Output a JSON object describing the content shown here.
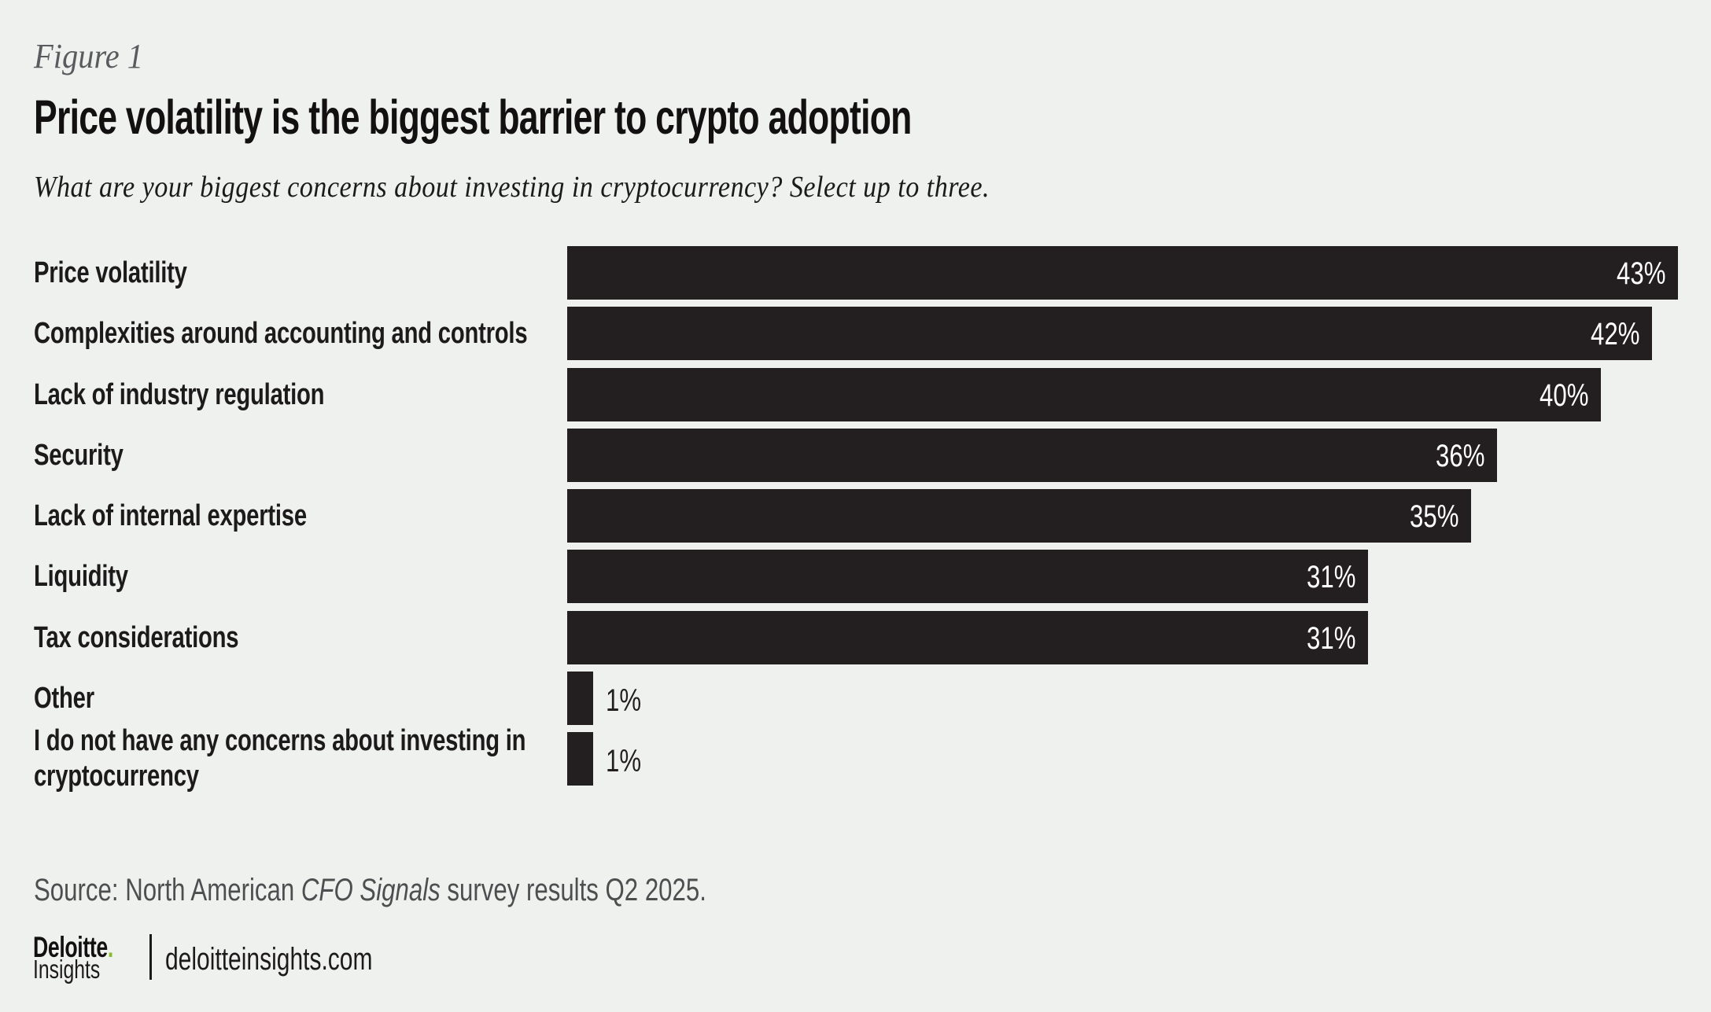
{
  "figure": {
    "label": "Figure 1"
  },
  "title": "Price volatility is the biggest barrier to crypto adoption",
  "subtitle": "What are your biggest concerns about investing in cryptocurrency? Select up to three.",
  "chart_data": {
    "type": "bar",
    "orientation": "horizontal",
    "categories": [
      "Price volatility",
      "Complexities around accounting and controls",
      "Lack of industry regulation",
      "Security",
      "Lack of internal expertise",
      "Liquidity",
      "Tax considerations",
      "Other",
      "I do not have any concerns about investing in\ncryptocurrency"
    ],
    "values": [
      43,
      42,
      40,
      36,
      35,
      31,
      31,
      1,
      1
    ],
    "value_suffix": "%",
    "xlim": [
      0,
      43
    ],
    "grid": false,
    "legend": false,
    "bar_color": "#231f20",
    "value_label_inside_color": "#ffffff",
    "value_label_outside_color": "#231f20"
  },
  "source": {
    "prefix": "Source: North American ",
    "italic": "CFO Signals",
    "suffix": " survey results Q2 2025."
  },
  "footer": {
    "brand": "Deloitte",
    "brand_dot": ".",
    "brand_sub": "Insights",
    "url": "deloitteinsights.com",
    "accent_green": "#86bc25"
  },
  "colors": {
    "background": "#eff1ef",
    "bar": "#231f20",
    "figure_label": "#595c5e",
    "source_text": "#4c4e50"
  }
}
